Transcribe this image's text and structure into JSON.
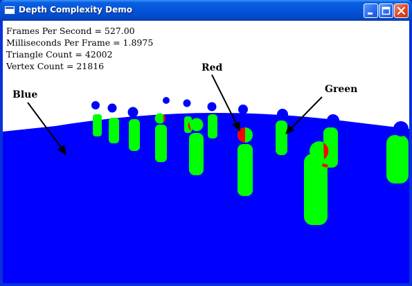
{
  "window": {
    "title": "Depth Complexity Demo"
  },
  "stats": {
    "fps": "Frames Per Second = 527.00",
    "mspf": "Milliseconds Per Frame = 1.8975",
    "triangles": "Triangle Count = 42002",
    "vertices": "Vertex Count = 21816"
  },
  "annotations": {
    "blue": "Blue",
    "red": "Red",
    "green": "Green"
  },
  "colors": {
    "ground": "#0000ff",
    "pillar": "#00ff00",
    "overlap": "#ff0000",
    "sky": "#ffffff"
  },
  "controls": {
    "minimize_icon": "minimize-icon",
    "maximize_icon": "maximize-icon",
    "close_icon": "close-icon"
  }
}
